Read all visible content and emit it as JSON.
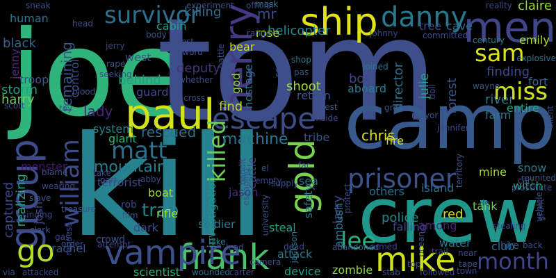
{
  "background": "#000000",
  "words": [
    {
      "text": "joe",
      "color": "#2fb47c"
    },
    {
      "text": "tom",
      "color": "#3d4e8a"
    },
    {
      "text": "kill",
      "color": "#26828e"
    },
    {
      "text": "camp",
      "color": "#38598c"
    },
    {
      "text": "crew",
      "color": "#1f988b"
    },
    {
      "text": "paul",
      "color": "#d2e21b"
    },
    {
      "text": "men",
      "color": "#404688"
    },
    {
      "text": "ship",
      "color": "#e0e318"
    },
    {
      "text": "danny",
      "color": "#2a788e"
    },
    {
      "text": "henry",
      "color": "#443a83"
    },
    {
      "text": "group",
      "color": "#3e4c8a"
    },
    {
      "text": "frank",
      "color": "#4ac16d"
    },
    {
      "text": "escape",
      "color": "#3d4d8a"
    },
    {
      "text": "mike",
      "color": "#d0e11c"
    },
    {
      "text": "vampire",
      "color": "#3c508b"
    },
    {
      "text": "prisoner",
      "color": "#3b528b"
    },
    {
      "text": "survivor",
      "color": "#2c718e"
    },
    {
      "text": "sam",
      "color": "#dde318"
    },
    {
      "text": "miss",
      "color": "#c8e020"
    },
    {
      "text": "gold",
      "color": "#7ad151"
    },
    {
      "text": "lee",
      "color": "#2ab07f"
    },
    {
      "text": "month",
      "color": "#414487"
    },
    {
      "text": "william",
      "color": "#3e4989"
    },
    {
      "text": "matt",
      "color": "#2d708e"
    },
    {
      "text": "killed",
      "color": "#6ccd5a"
    },
    {
      "text": "go",
      "color": "#b5de2b"
    },
    {
      "text": "mountain",
      "color": "#277f8e"
    },
    {
      "text": "machine",
      "color": "#2a768e"
    },
    {
      "text": "remaining",
      "color": "#3b528b"
    },
    {
      "text": "finding",
      "color": "#3e4989"
    },
    {
      "text": "mr",
      "color": "#3e4c8a"
    },
    {
      "text": "lady",
      "color": "#482475"
    },
    {
      "text": "helicopter",
      "color": "#24878e"
    },
    {
      "text": "tree",
      "color": "#3e4a89"
    },
    {
      "text": "river",
      "color": "#2a768e"
    },
    {
      "text": "miss",
      "color": "#c8e020"
    },
    {
      "text": "chris",
      "color": "#dde318"
    },
    {
      "text": "emily",
      "color": "#a8db34"
    },
    {
      "text": "claire",
      "color": "#9bd93c"
    },
    {
      "text": "fort",
      "color": "#31688e"
    },
    {
      "text": "cave",
      "color": "#2c718e"
    },
    {
      "text": "forest",
      "color": "#3b528b"
    },
    {
      "text": "farm",
      "color": "#2a788e"
    },
    {
      "text": "entire",
      "color": "#20a386"
    },
    {
      "text": "julie",
      "color": "#22a884"
    },
    {
      "text": "director",
      "color": "#2e6e8e"
    },
    {
      "text": "box",
      "color": "#3e4a89"
    },
    {
      "text": "aboard",
      "color": "#2a788e"
    },
    {
      "text": "god",
      "color": "#8ed645"
    },
    {
      "text": "hostage",
      "color": "#2c718e"
    },
    {
      "text": "shoot",
      "color": "#a5db36"
    },
    {
      "text": "return",
      "color": "#3b528b"
    },
    {
      "text": "find",
      "color": "#bade28"
    },
    {
      "text": "rose",
      "color": "#a2da37"
    },
    {
      "text": "bear",
      "color": "#c2df23"
    },
    {
      "text": "killing",
      "color": "#2e6f8e"
    },
    {
      "text": "cabin",
      "color": "#1fa088"
    },
    {
      "text": "deputy",
      "color": "#46327e"
    },
    {
      "text": "west",
      "color": "#3b528b"
    },
    {
      "text": "behind",
      "color": "#1f9f88"
    },
    {
      "text": "guard",
      "color": "#3e4a89"
    },
    {
      "text": "control",
      "color": "#3b528b"
    },
    {
      "text": "black",
      "color": "#32648e"
    },
    {
      "text": "jenny",
      "color": "#472c7a"
    },
    {
      "text": "troop",
      "color": "#3b528b"
    },
    {
      "text": "storm",
      "color": "#1f9f88"
    },
    {
      "text": "harry",
      "color": "#6ccd5a"
    },
    {
      "text": "human",
      "color": "#2a788e"
    },
    {
      "text": "system",
      "color": "#27808e"
    },
    {
      "text": "terrorist",
      "color": "#3e4989"
    },
    {
      "text": "rescued",
      "color": "#2c718e"
    },
    {
      "text": "giant",
      "color": "#2fb47c"
    },
    {
      "text": "monster",
      "color": "#48186a"
    },
    {
      "text": "captured",
      "color": "#3e4989"
    },
    {
      "text": "realizing",
      "color": "#20a386"
    },
    {
      "text": "tribe",
      "color": "#3b528b"
    },
    {
      "text": "fire",
      "color": "#cde11d"
    },
    {
      "text": "sea",
      "color": "#2c718e"
    },
    {
      "text": "cattle",
      "color": "#3e4989"
    },
    {
      "text": "jason",
      "color": "#472c7a"
    },
    {
      "text": "investigation",
      "color": "#1f968b"
    },
    {
      "text": "boat",
      "color": "#a2da37"
    },
    {
      "text": "trap",
      "color": "#25838e"
    },
    {
      "text": "rifle",
      "color": "#a0da39"
    },
    {
      "text": "dark",
      "color": "#3e4989"
    },
    {
      "text": "soldier",
      "color": "#2a788e"
    },
    {
      "text": "safety",
      "color": "#2a768e"
    },
    {
      "text": "larry",
      "color": "#3e4989"
    },
    {
      "text": "ambush",
      "color": "#2a788e"
    },
    {
      "text": "others",
      "color": "#2c718e"
    },
    {
      "text": "island",
      "color": "#2e6e8e"
    },
    {
      "text": "tank",
      "color": "#6ccd5a"
    },
    {
      "text": "mine",
      "color": "#a5db36"
    },
    {
      "text": "witch",
      "color": "#22a884"
    },
    {
      "text": "snow",
      "color": "#2a788e"
    },
    {
      "text": "police",
      "color": "#24878e"
    },
    {
      "text": "red",
      "color": "#c8e020"
    },
    {
      "text": "falling",
      "color": "#404688"
    },
    {
      "text": "among",
      "color": "#482475"
    },
    {
      "text": "water",
      "color": "#2a788e"
    },
    {
      "text": "club",
      "color": "#2e6e8e"
    },
    {
      "text": "hire",
      "color": "#3b528b"
    },
    {
      "text": "steal",
      "color": "#1fa088"
    },
    {
      "text": "attack",
      "color": "#2a788e"
    },
    {
      "text": "device",
      "color": "#1f9f88"
    },
    {
      "text": "zombie",
      "color": "#8ed645"
    },
    {
      "text": "scientist",
      "color": "#2fb47c"
    },
    {
      "text": "rachel",
      "color": "#3b528b"
    },
    {
      "text": "josh",
      "color": "#3e4989"
    },
    {
      "text": "rob",
      "color": "#3e4989"
    },
    {
      "text": "crowd",
      "color": "#3b528b"
    },
    {
      "text": "lake",
      "color": "#2a788e"
    },
    {
      "text": "dead",
      "color": "#3e4989"
    },
    {
      "text": "wounded",
      "color": "#2e6e8e"
    },
    {
      "text": "carter",
      "color": "#3e4989"
    },
    {
      "text": "jackson",
      "color": "#2a788e"
    },
    {
      "text": "stab",
      "color": "#3b528b"
    },
    {
      "text": "followed",
      "color": "#3e4989"
    },
    {
      "text": "town",
      "color": "#3e4989"
    },
    {
      "text": "mask",
      "color": "#2a788e"
    },
    {
      "text": "sneak",
      "color": "#3b528b"
    },
    {
      "text": "head",
      "color": "#3b528b"
    },
    {
      "text": "body",
      "color": "#3b528b"
    },
    {
      "text": "rest",
      "color": "#3e4989"
    },
    {
      "text": "sword",
      "color": "#3b528b"
    },
    {
      "text": "battle",
      "color": "#3e4989"
    },
    {
      "text": "ranger",
      "color": "#3b528b"
    },
    {
      "text": "johnny",
      "color": "#3e4989"
    },
    {
      "text": "committed",
      "color": "#3e4989"
    },
    {
      "text": "century",
      "color": "#2a788e"
    },
    {
      "text": "explosive",
      "color": "#2a768e"
    },
    {
      "text": "wayne",
      "color": "#3b528b"
    },
    {
      "text": "client",
      "color": "#3e4989"
    },
    {
      "text": "reunited",
      "color": "#3b528b"
    },
    {
      "text": "carl",
      "color": "#3e4989"
    },
    {
      "text": "stealing",
      "color": "#3e4989"
    },
    {
      "text": "back",
      "color": "#3b528b"
    },
    {
      "text": "mayor",
      "color": "#3b528b"
    },
    {
      "text": "green",
      "color": "#3b528b"
    },
    {
      "text": "jennifer",
      "color": "#3e4989"
    },
    {
      "text": "territory",
      "color": "#3b528b"
    },
    {
      "text": "joined",
      "color": "#2a788e"
    },
    {
      "text": "shop",
      "color": "#2a788e"
    },
    {
      "text": "pas",
      "color": "#3b528b"
    },
    {
      "text": "guest",
      "color": "#3b528b"
    },
    {
      "text": "inside",
      "color": "#3e4989"
    },
    {
      "text": "official",
      "color": "#3e4989"
    },
    {
      "text": "experiment",
      "color": "#3b528b"
    },
    {
      "text": "reality",
      "color": "#3e4989"
    },
    {
      "text": "jerry",
      "color": "#3e4989"
    },
    {
      "text": "rape",
      "color": "#3b528b"
    },
    {
      "text": "seeking",
      "color": "#3b528b"
    },
    {
      "text": "whether",
      "color": "#3e4989"
    },
    {
      "text": "blood",
      "color": "#3b528b"
    },
    {
      "text": "cross",
      "color": "#3e4989"
    },
    {
      "text": "toy",
      "color": "#3b528b"
    },
    {
      "text": "scott",
      "color": "#3b528b"
    },
    {
      "text": "blame",
      "color": "#3b528b"
    },
    {
      "text": "wearing",
      "color": "#3e4989"
    },
    {
      "text": "slave",
      "color": "#3b528b"
    },
    {
      "text": "singing",
      "color": "#3e4989"
    },
    {
      "text": "treasure",
      "color": "#3b528b"
    },
    {
      "text": "take",
      "color": "#3e4989"
    },
    {
      "text": "part",
      "color": "#3b528b"
    },
    {
      "text": "abby",
      "color": "#3e4989"
    },
    {
      "text": "film",
      "color": "#3b528b"
    },
    {
      "text": "request",
      "color": "#3e4989"
    },
    {
      "text": "clark",
      "color": "#3b528b"
    },
    {
      "text": "gas",
      "color": "#3e4989"
    },
    {
      "text": "order",
      "color": "#3b528b"
    },
    {
      "text": "attempt",
      "color": "#3e4989"
    },
    {
      "text": "via",
      "color": "#3b528b"
    },
    {
      "text": "attacked",
      "color": "#3e4989"
    },
    {
      "text": "el",
      "color": "#3b528b"
    },
    {
      "text": "bandit",
      "color": "#3e4989"
    },
    {
      "text": "escaping",
      "color": "#3b528b"
    },
    {
      "text": "empty",
      "color": "#3e4989"
    },
    {
      "text": "supply",
      "color": "#3b528b"
    },
    {
      "text": "far",
      "color": "#3e4989"
    },
    {
      "text": "university",
      "color": "#3b528b"
    },
    {
      "text": "protect",
      "color": "#3e4989"
    },
    {
      "text": "abandoned",
      "color": "#3b528b"
    },
    {
      "text": "armed",
      "color": "#3e4989"
    },
    {
      "text": "ocean",
      "color": "#3b528b"
    },
    {
      "text": "trail",
      "color": "#3e4989"
    },
    {
      "text": "top",
      "color": "#3b528b"
    },
    {
      "text": "near",
      "color": "#3e4989"
    },
    {
      "text": "tape",
      "color": "#3b528b"
    },
    {
      "text": "camera",
      "color": "#3e4989"
    },
    {
      "text": "lead",
      "color": "#3b528b"
    },
    {
      "text": "doll",
      "color": "#3e4989"
    },
    {
      "text": "society",
      "color": "#3b528b"
    },
    {
      "text": "le",
      "color": "#3e4989"
    },
    {
      "text": "vehicle",
      "color": "#3b528b"
    },
    {
      "text": "grant",
      "color": "#3e4989"
    },
    {
      "text": "prostitute",
      "color": "#3b528b"
    }
  ]
}
